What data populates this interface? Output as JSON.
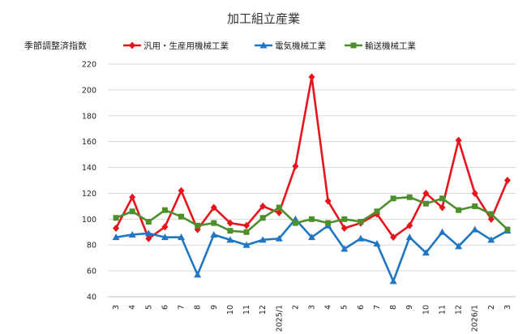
{
  "chart_data": {
    "type": "line",
    "title": "加工組立産業",
    "ylabel": "季節調整済指数",
    "xlabel": "",
    "ylim": [
      40,
      220
    ],
    "yticks": [
      40,
      60,
      80,
      100,
      120,
      140,
      160,
      180,
      200,
      220
    ],
    "grid": "horizontal",
    "legend_position": "top",
    "categories": [
      "3",
      "4",
      "5",
      "6",
      "7",
      "8",
      "9",
      "10",
      "11",
      "12",
      "2025/1",
      "2",
      "3",
      "4",
      "5",
      "6",
      "7",
      "8",
      "9",
      "10",
      "11",
      "12",
      "2026/1",
      "2",
      "3"
    ],
    "series": [
      {
        "name": "汎用・生産用機械工業",
        "color": "#e8141c",
        "marker": "diamond",
        "values": [
          93,
          117,
          85,
          94,
          122,
          92,
          109,
          97,
          95,
          110,
          105,
          141,
          210,
          114,
          93,
          97,
          104,
          86,
          95,
          120,
          109,
          161,
          120,
          100,
          130
        ]
      },
      {
        "name": "電気機械工業",
        "color": "#1f77c4",
        "marker": "triangle",
        "values": [
          86,
          88,
          89,
          86,
          86,
          57,
          88,
          84,
          80,
          84,
          85,
          100,
          86,
          95,
          77,
          85,
          81,
          52,
          86,
          74,
          90,
          79,
          92,
          84,
          91
        ]
      },
      {
        "name": "輸送機械工業",
        "color": "#4e8f2d",
        "marker": "square",
        "values": [
          101,
          106,
          98,
          107,
          102,
          95,
          97,
          91,
          90,
          101,
          109,
          97,
          100,
          97,
          100,
          98,
          106,
          116,
          117,
          112,
          116,
          107,
          110,
          104,
          92
        ]
      }
    ]
  }
}
